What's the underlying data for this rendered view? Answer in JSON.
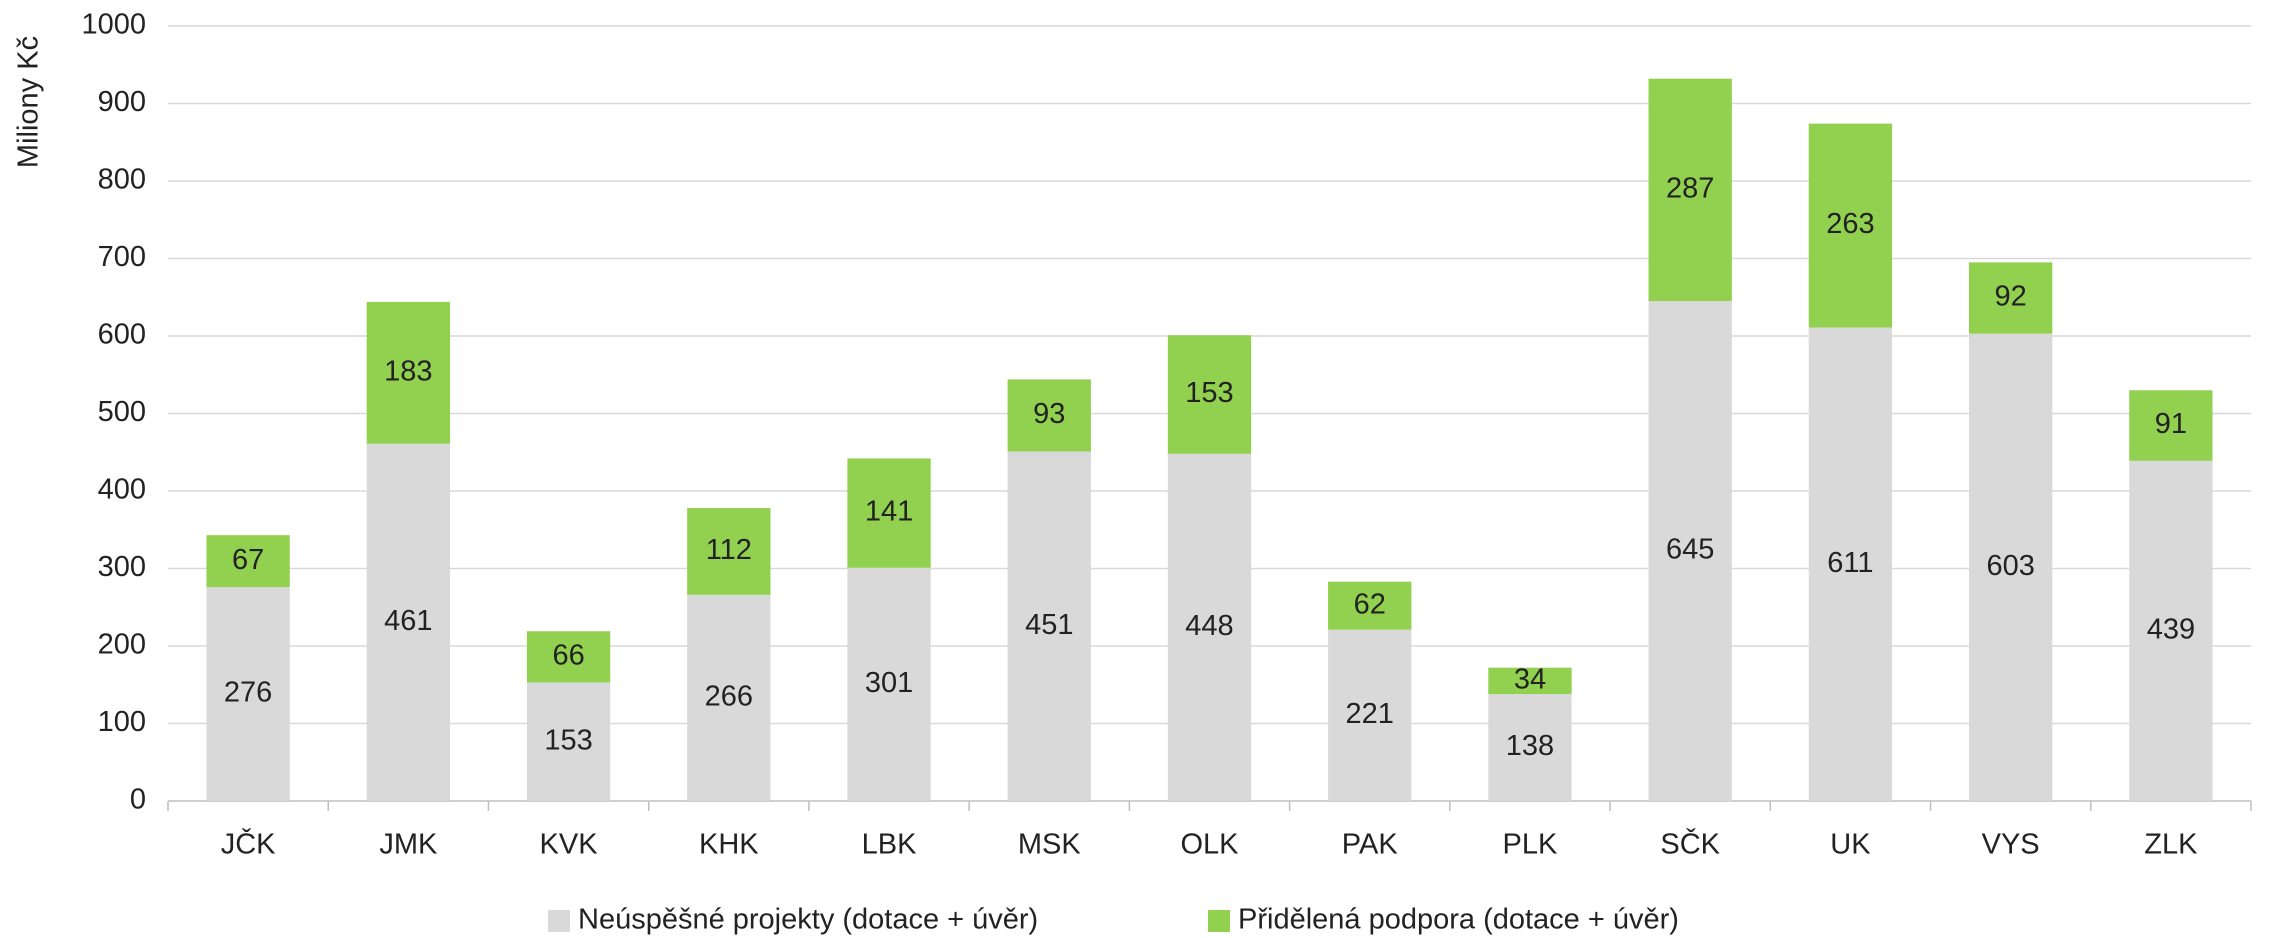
{
  "chart_data": {
    "type": "stacked_bar",
    "y_label": "Miliony Kč",
    "categories": [
      "JČK",
      "JMK",
      "KVK",
      "KHK",
      "LBK",
      "MSK",
      "OLK",
      "PAK",
      "PLK",
      "SČK",
      "UK",
      "VYS",
      "ZLK"
    ],
    "series": [
      {
        "name": "Neúspěšné projekty (dotace + úvěr)",
        "color": "#d9d9d9",
        "values": [
          276,
          461,
          153,
          266,
          301,
          451,
          448,
          221,
          138,
          645,
          611,
          603,
          439
        ]
      },
      {
        "name": "Přidělená podpora (dotace + úvěr)",
        "color": "#92d050",
        "values": [
          67,
          183,
          66,
          112,
          141,
          93,
          153,
          62,
          34,
          287,
          263,
          92,
          91
        ]
      }
    ],
    "ylim": [
      0,
      1000
    ],
    "yticks": [
      0,
      100,
      200,
      300,
      400,
      500,
      600,
      700,
      800,
      900,
      1000
    ],
    "grid": true,
    "legend": "bottom"
  }
}
